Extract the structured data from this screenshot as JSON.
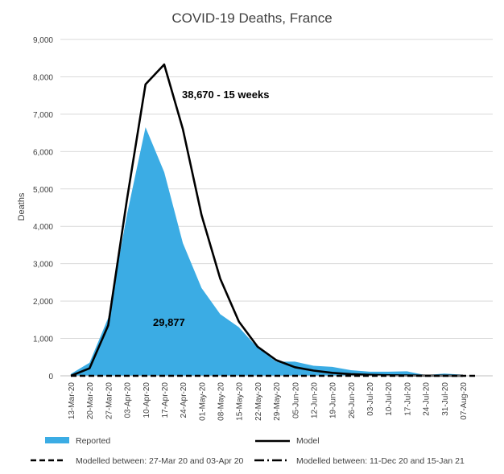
{
  "chart_data": {
    "type": "area",
    "title": "COVID-19 Deaths, France",
    "xlabel": "",
    "ylabel": "Deaths",
    "ylim": [
      0,
      9000
    ],
    "yticks": [
      "0",
      "1,000",
      "2,000",
      "3,000",
      "4,000",
      "5,000",
      "6,000",
      "7,000",
      "8,000",
      "9,000"
    ],
    "categories": [
      "13-Mar-20",
      "20-Mar-20",
      "27-Mar-20",
      "03-Apr-20",
      "10-Apr-20",
      "17-Apr-20",
      "24-Apr-20",
      "01-May-20",
      "08-May-20",
      "15-May-20",
      "22-May-20",
      "29-May-20",
      "05-Jun-20",
      "12-Jun-20",
      "19-Jun-20",
      "26-Jun-20",
      "03-Jul-20",
      "10-Jul-20",
      "17-Jul-20",
      "24-Jul-20",
      "31-Jul-20",
      "07-Aug-20"
    ],
    "series": [
      {
        "name": "Reported",
        "type": "area",
        "color": "#3BACE4",
        "values": [
          50,
          350,
          1550,
          4300,
          6650,
          5450,
          3550,
          2350,
          1650,
          1300,
          750,
          380,
          380,
          270,
          240,
          150,
          110,
          110,
          120,
          20,
          60,
          30
        ]
      },
      {
        "name": "Model",
        "type": "line",
        "color": "#000000",
        "values": [
          0,
          200,
          1350,
          4700,
          7800,
          8330,
          6600,
          4300,
          2600,
          1450,
          780,
          420,
          230,
          140,
          80,
          45,
          25,
          15,
          10,
          5,
          3,
          2
        ]
      }
    ],
    "legend": {
      "position": "bottom",
      "items": [
        {
          "label": "Reported",
          "style": "area",
          "color": "#3BACE4"
        },
        {
          "label": "Model",
          "style": "line",
          "color": "#000000"
        },
        {
          "label": "Modelled between: 27-Mar 20 and 03-Apr 20",
          "style": "dash",
          "color": "#000000"
        },
        {
          "label": "Modelled between: 11-Dec 20 and 15-Jan 21",
          "style": "dashdot",
          "color": "#000000"
        }
      ]
    },
    "annotations": [
      {
        "text": "38,670 - 15 weeks",
        "series": "Model"
      },
      {
        "text": "29,877",
        "series": "Reported"
      }
    ],
    "grid": true
  }
}
